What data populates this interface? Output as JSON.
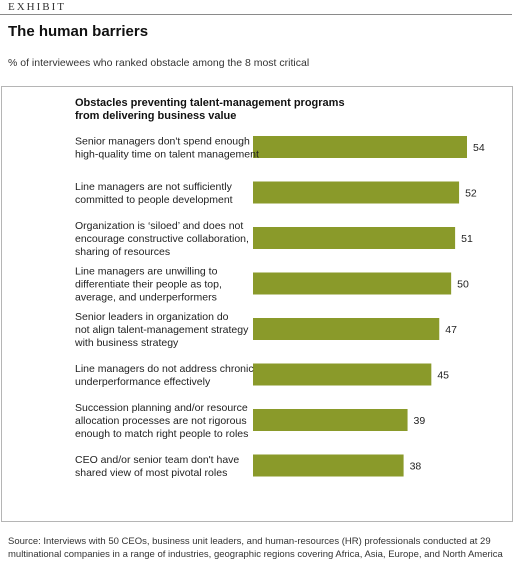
{
  "exhibit_label": "EXHIBIT",
  "title": "The human barriers",
  "subtitle": "% of interviewees who ranked obstacle among the 8 most critical",
  "chart_data": {
    "type": "bar",
    "orientation": "horizontal",
    "title": "Obstacles preventing talent-management programs from delivering business value",
    "categories": [
      [
        "Senior managers don't spend enough",
        "high-quality time on talent management"
      ],
      [
        "Line managers are not sufficiently",
        "committed to people development"
      ],
      [
        "Organization is ‘siloed’ and does not",
        "encourage constructive collaboration,",
        "sharing of resources"
      ],
      [
        "Line managers are unwilling to",
        "differentiate their people as top,",
        "average, and underperformers"
      ],
      [
        "Senior leaders in organization do",
        "not align talent-management strategy",
        "with business strategy"
      ],
      [
        "Line managers do not address chronic",
        "underperformance effectively"
      ],
      [
        "Succession planning and/or resource",
        "allocation processes are not rigorous",
        "enough to match right people to roles"
      ],
      [
        "CEO and/or senior team don't have",
        "shared view of most pivotal roles"
      ]
    ],
    "values": [
      54,
      52,
      51,
      50,
      47,
      45,
      39,
      38
    ],
    "bar_color": "#8a9a2a",
    "data_labels": true,
    "grid": false
  },
  "source": "Source: Interviews with 50 CEOs, business unit leaders, and human-resources (HR) professionals conducted at 29 multinational companies in a range of industries, geographic regions covering Africa, Asia, Europe, and North America"
}
